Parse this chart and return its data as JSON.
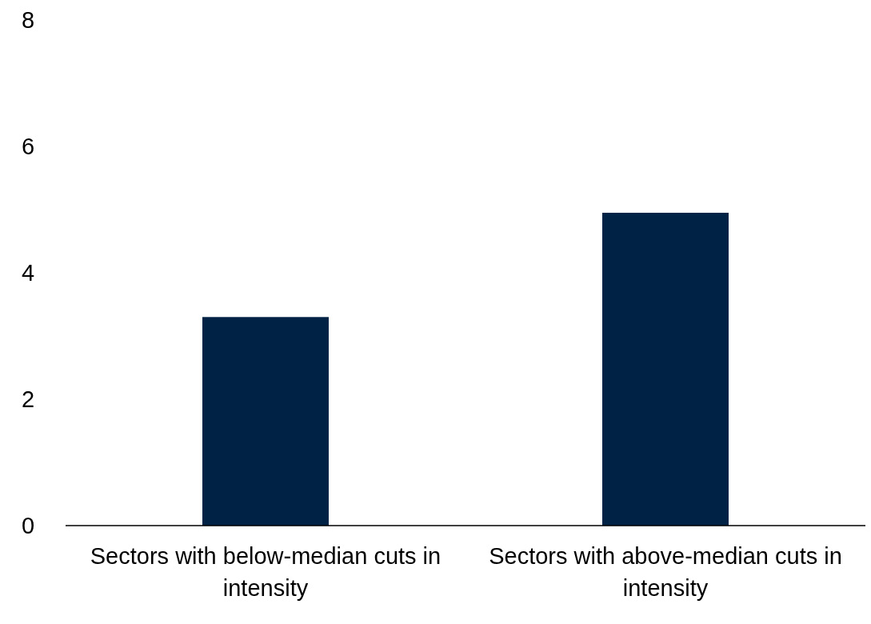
{
  "chart_data": {
    "type": "bar",
    "categories": [
      "Sectors with below-median cuts in intensity",
      "Sectors with above-median cuts in intensity"
    ],
    "values": [
      3.3,
      4.95
    ],
    "color": "#002345",
    "ylim": [
      0,
      8
    ],
    "yticks": [
      0,
      2,
      4,
      6,
      8
    ]
  }
}
